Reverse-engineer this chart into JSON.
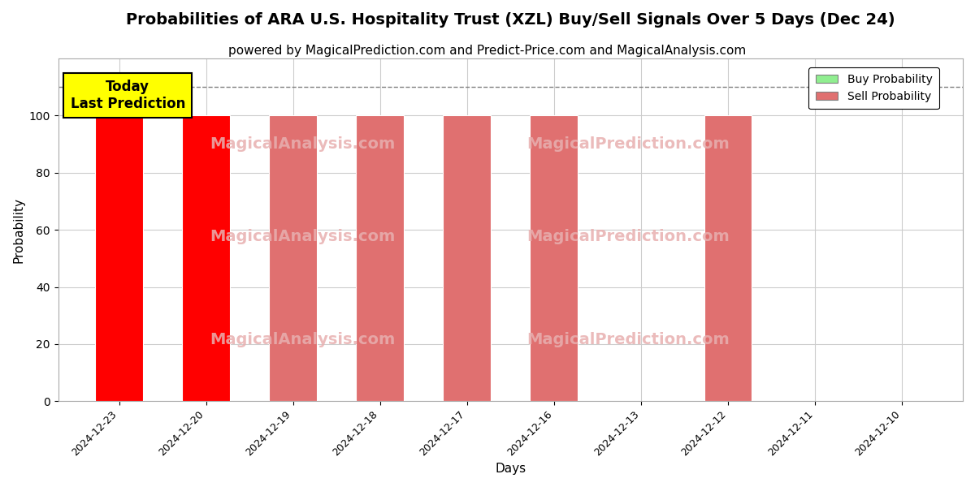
{
  "title": "Probabilities of ARA U.S. Hospitality Trust (XZL) Buy/Sell Signals Over 5 Days (Dec 24)",
  "subtitle": "powered by MagicalPrediction.com and Predict-Price.com and MagicalAnalysis.com",
  "xlabel": "Days",
  "ylabel": "Probability",
  "dates": [
    "2024-12-23",
    "2024-12-20",
    "2024-12-19",
    "2024-12-18",
    "2024-12-17",
    "2024-12-16",
    "2024-12-13",
    "2024-12-12",
    "2024-12-11",
    "2024-12-10"
  ],
  "sell_probs": [
    100,
    100,
    100,
    100,
    100,
    100,
    0,
    100,
    0,
    0
  ],
  "bar_colors_sell": [
    "#ff0000",
    "#ff0000",
    "#e07070",
    "#e07070",
    "#e07070",
    "#e07070",
    "#e07070",
    "#e07070",
    "#e07070",
    "#e07070"
  ],
  "today_annotation": "Today\nLast Prediction",
  "today_index": 0,
  "dashed_line_y": 110,
  "ylim": [
    0,
    120
  ],
  "yticks": [
    0,
    20,
    40,
    60,
    80,
    100
  ],
  "background_color": "#ffffff",
  "plot_bg_color": "#ffffff",
  "grid_color": "#cccccc",
  "title_fontsize": 14,
  "subtitle_fontsize": 11,
  "annotation_bg": "#ffff00",
  "legend_buy_color": "#90ee90",
  "legend_sell_color": "#e07070",
  "bar_width": 0.55,
  "watermark_color": "#e8b0b0"
}
